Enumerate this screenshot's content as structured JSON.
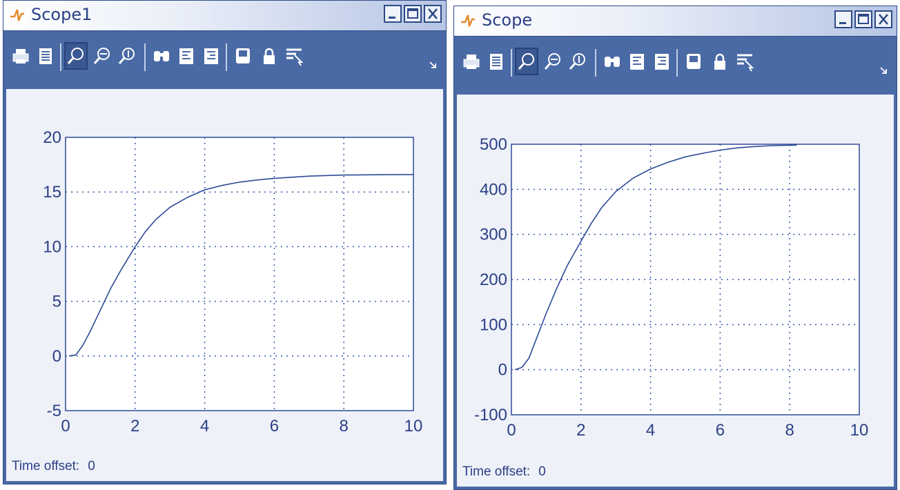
{
  "colors": {
    "frame": "#4a6aa5",
    "trace": "#2b4a96",
    "grid": "#3355aa",
    "axis_text": "#2b3f86",
    "plot_bg": "#eef1f8"
  },
  "icons": [
    "print-icon",
    "parameters-icon",
    "zoom-icon",
    "zoom-x-icon",
    "zoom-y-icon",
    "autoscale-icon",
    "save-axes-icon",
    "restore-axes-icon",
    "floating-scope-icon",
    "lock-axes-icon",
    "signal-selection-icon"
  ],
  "windows": [
    {
      "title": "Scope1",
      "time_offset_label": "Time offset:",
      "time_offset_value": "0",
      "chart_data": {
        "type": "line",
        "x_ticks": [
          "0",
          "2",
          "4",
          "6",
          "8",
          "10"
        ],
        "y_ticks": [
          "-5",
          "0",
          "5",
          "10",
          "15",
          "20"
        ],
        "xlim": [
          0,
          10
        ],
        "ylim": [
          -5,
          20
        ],
        "grid": true,
        "series": [
          {
            "x": [
              0.1,
              0.3,
              0.5,
              0.7,
              1.0,
              1.3,
              1.6,
              2.0,
              2.3,
              2.6,
              3.0,
              3.5,
              4.0,
              4.5,
              5.0,
              5.5,
              6.0,
              7.0,
              8.0,
              9.0,
              10.0
            ],
            "y": [
              0,
              0.1,
              1.0,
              2.2,
              4.2,
              6.2,
              7.9,
              10.0,
              11.4,
              12.5,
              13.6,
              14.5,
              15.2,
              15.6,
              15.9,
              16.1,
              16.25,
              16.45,
              16.55,
              16.58,
              16.6
            ]
          }
        ]
      }
    },
    {
      "title": "Scope",
      "time_offset_label": "Time offset:",
      "time_offset_value": "0",
      "chart_data": {
        "type": "line",
        "x_ticks": [
          "0",
          "2",
          "4",
          "6",
          "8",
          "10"
        ],
        "y_ticks": [
          "-100",
          "0",
          "100",
          "200",
          "300",
          "400",
          "500"
        ],
        "xlim": [
          0,
          10
        ],
        "ylim": [
          -100,
          500
        ],
        "grid": true,
        "series": [
          {
            "x": [
              0.1,
              0.3,
              0.5,
              0.7,
              1.0,
              1.3,
              1.6,
              2.0,
              2.3,
              2.6,
              3.0,
              3.5,
              4.0,
              4.5,
              5.0,
              5.5,
              6.0,
              6.5,
              7.0,
              7.5,
              8.2
            ],
            "y": [
              0,
              5,
              25,
              65,
              125,
              180,
              230,
              285,
              325,
              360,
              395,
              425,
              445,
              460,
              472,
              480,
              487,
              492,
              495,
              497,
              498
            ]
          }
        ]
      }
    }
  ]
}
